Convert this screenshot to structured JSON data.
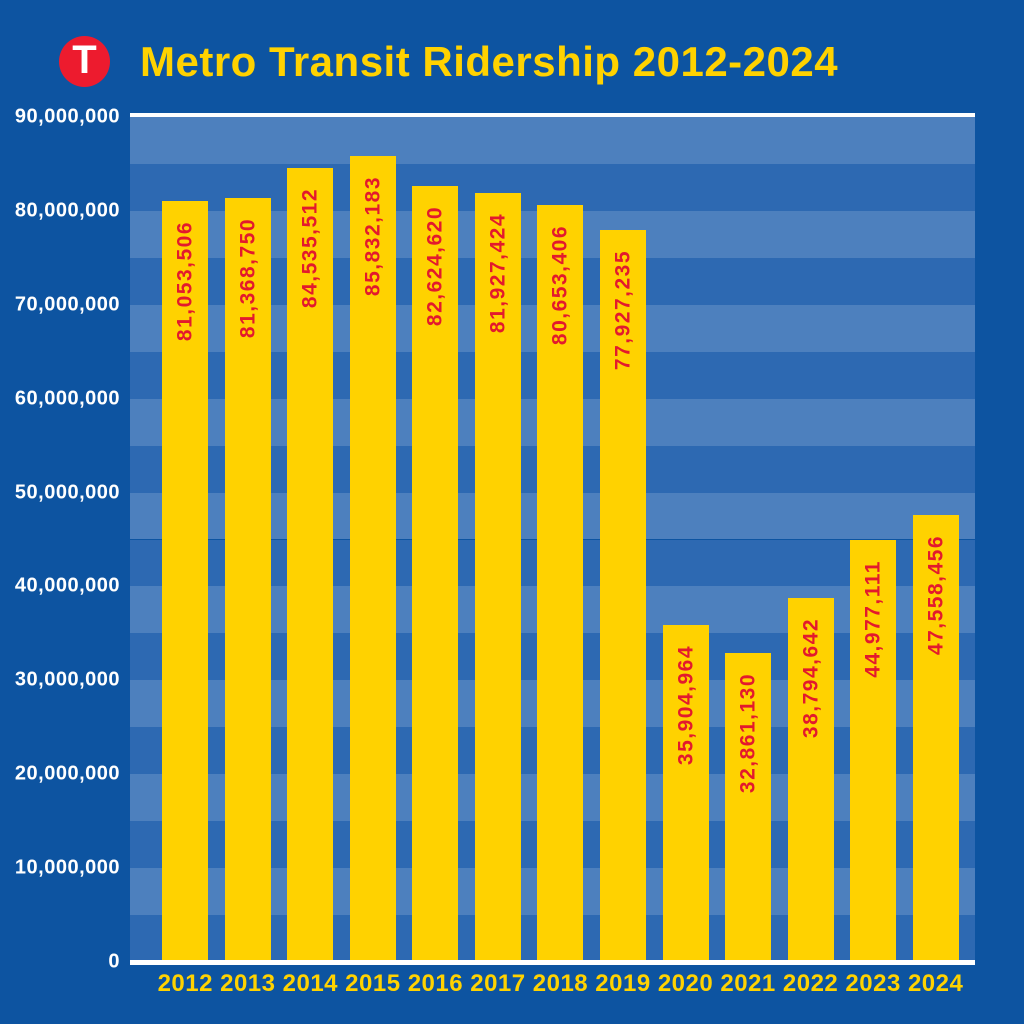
{
  "header": {
    "logo_letter": "T",
    "logo_color": "#ed1b2e",
    "title_color": "#ffd200"
  },
  "chart_data": {
    "type": "bar",
    "title": "Metro Transit Ridership 2012-2024",
    "xlabel": "",
    "ylabel": "",
    "categories": [
      "2012",
      "2013",
      "2014",
      "2015",
      "2016",
      "2017",
      "2018",
      "2019",
      "2020",
      "2021",
      "2022",
      "2023",
      "2024"
    ],
    "values": [
      81053506,
      81368750,
      84535512,
      85832183,
      82624620,
      81927424,
      80653406,
      77927235,
      35904964,
      32861130,
      38794642,
      44977111,
      47558456
    ],
    "value_labels": [
      "81,053,506",
      "81,368,750",
      "84,535,512",
      "85,832,183",
      "82,624,620",
      "81,927,424",
      "80,653,406",
      "77,927,235",
      "35,904,964",
      "32,861,130",
      "38,794,642",
      "44,977,111",
      "47,558,456"
    ],
    "y_ticks": [
      "90,000,000",
      "80,000,000",
      "70,000,000",
      "60,000,000",
      "50,000,000",
      "40,000,000",
      "30,000,000",
      "20,000,000",
      "10,000,000",
      "0"
    ],
    "ylim": [
      0,
      90000000
    ],
    "band_step": 5000000,
    "legend": "none",
    "grid": "horizontal-bands",
    "background": "#0d54a1",
    "band_color_light": "#4d80be",
    "band_color_dark": "#2d69b2",
    "bar_color": "#ffd200",
    "value_label_color": "#e3192d",
    "y_tick_color": "#ffffff",
    "x_tick_color": "#ffd200",
    "axis_line_color": "#ffffff"
  }
}
